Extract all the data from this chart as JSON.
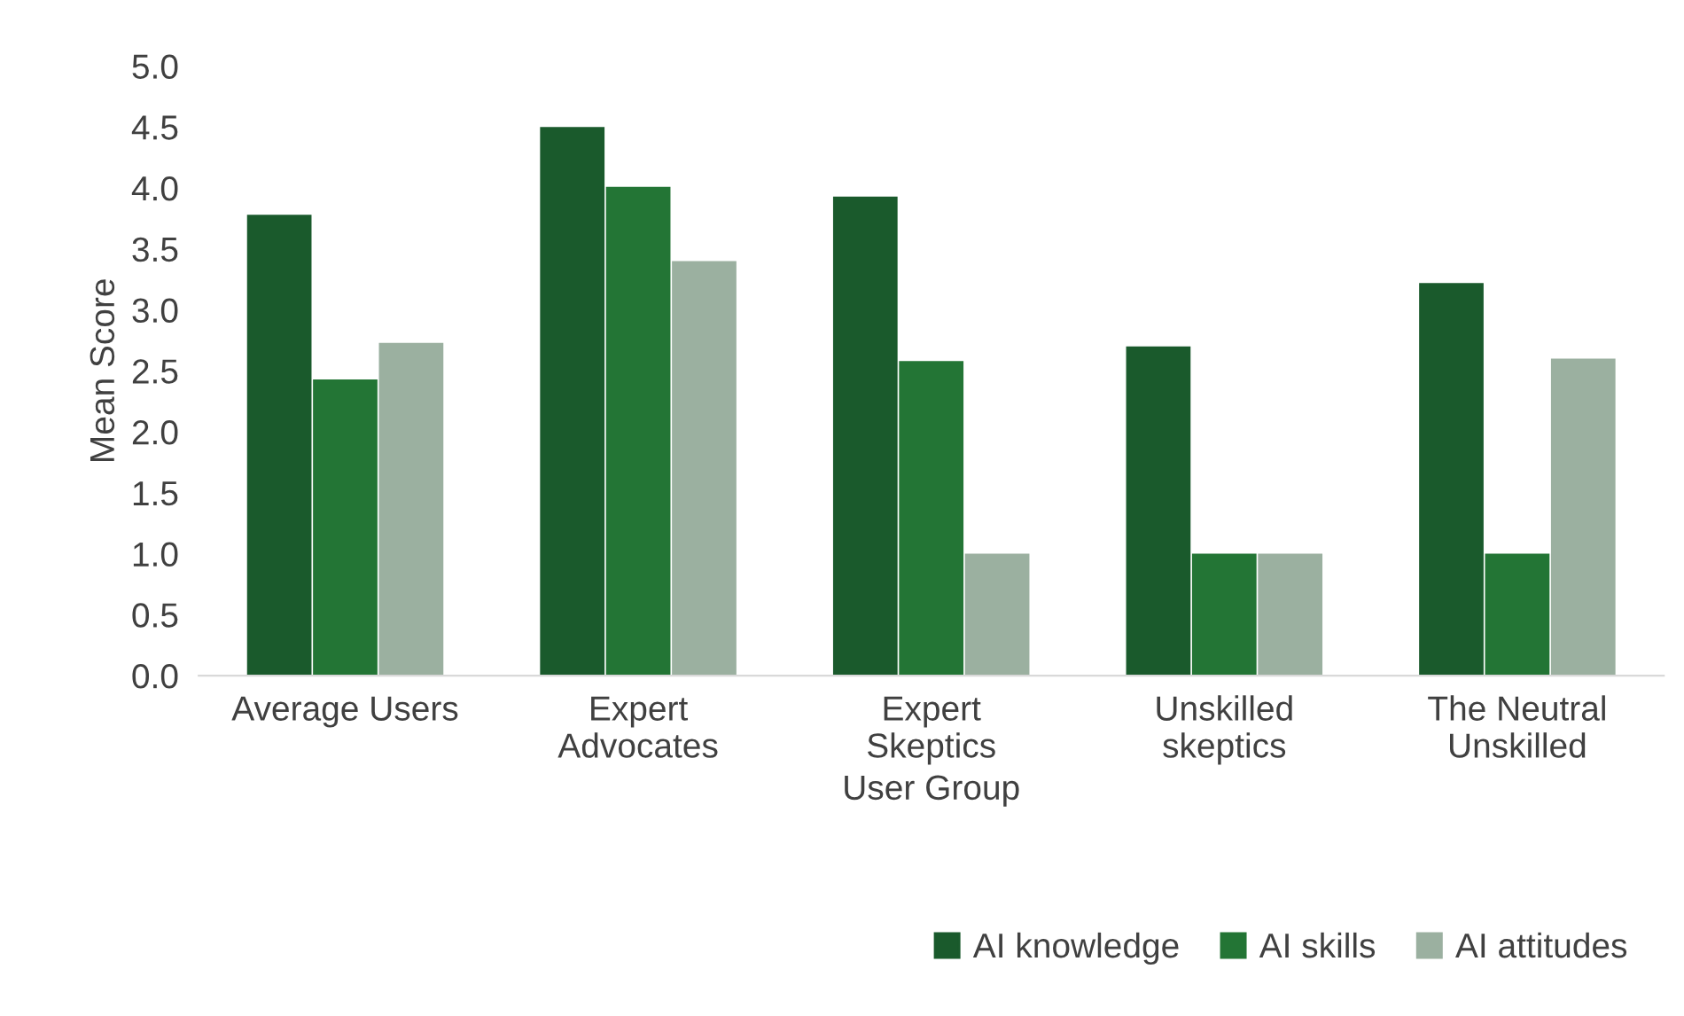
{
  "chart_data": {
    "type": "bar",
    "xlabel": "User Group",
    "ylabel": "Mean Score",
    "categories": [
      "Average Users",
      "Expert\nAdvocates",
      "Expert\nSkeptics",
      "Unskilled\nskeptics",
      "The Neutral\nUnskilled"
    ],
    "series": [
      {
        "name": "AI knowledge",
        "color": "#1a5a2c",
        "values": [
          3.78,
          4.5,
          3.93,
          2.7,
          3.22
        ]
      },
      {
        "name": "AI skills",
        "color": "#237535",
        "values": [
          2.43,
          4.01,
          2.58,
          1.0,
          1.0
        ]
      },
      {
        "name": "AI attitudes",
        "color": "#9bb0a0",
        "values": [
          2.73,
          3.4,
          1.0,
          1.0,
          2.6
        ]
      }
    ],
    "ylim": [
      0,
      5
    ],
    "yticks": [
      {
        "value": 0,
        "label": "0.0"
      },
      {
        "value": 0.5,
        "label": "0.5"
      },
      {
        "value": 1,
        "label": "1.0"
      },
      {
        "value": 1.5,
        "label": "1.5"
      },
      {
        "value": 2,
        "label": "2.0"
      },
      {
        "value": 2.5,
        "label": "2.5"
      },
      {
        "value": 3,
        "label": "3.0"
      },
      {
        "value": 3.5,
        "label": "3.5"
      },
      {
        "value": 4,
        "label": "4.0"
      },
      {
        "value": 4.5,
        "label": "4.5"
      },
      {
        "value": 5,
        "label": "5.0"
      }
    ],
    "grid": false,
    "legend": "bottom right"
  }
}
